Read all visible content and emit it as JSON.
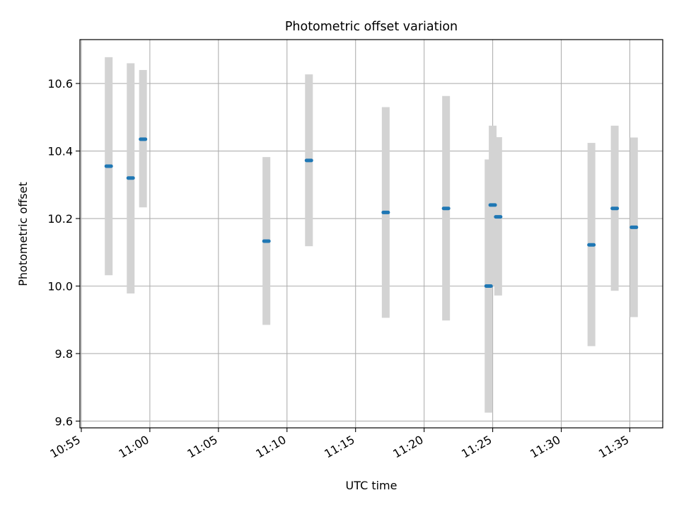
{
  "chart_data": {
    "type": "scatter",
    "title": "Photometric offset variation",
    "xlabel": "UTC time",
    "ylabel": "Photometric offset",
    "x_ticks": [
      "10:55",
      "11:00",
      "11:05",
      "11:10",
      "11:15",
      "11:20",
      "11:25",
      "11:30",
      "11:35"
    ],
    "x_tick_minutes": [
      0,
      5,
      10,
      15,
      20,
      25,
      30,
      35,
      40
    ],
    "xlim_minutes": [
      -0.1,
      42.4
    ],
    "y_ticks": [
      "9.6",
      "9.8",
      "10.0",
      "10.2",
      "10.4",
      "10.6"
    ],
    "y_tick_values": [
      9.6,
      9.8,
      10.0,
      10.2,
      10.4,
      10.6
    ],
    "ylim": [
      9.58,
      10.73
    ],
    "grid": true,
    "colors": {
      "point": "#1f77b4",
      "errorbar": "#d3d3d3",
      "grid": "#b0b0b0"
    },
    "series": [
      {
        "points": [
          {
            "time": "10:57:00",
            "y": 10.355,
            "y_low": 10.032,
            "y_high": 10.678
          },
          {
            "time": "10:58:36",
            "y": 10.32,
            "y_low": 9.978,
            "y_high": 10.66
          },
          {
            "time": "10:59:30",
            "y": 10.435,
            "y_low": 10.233,
            "y_high": 10.64
          },
          {
            "time": "11:08:30",
            "y": 10.133,
            "y_low": 9.885,
            "y_high": 10.382
          },
          {
            "time": "11:11:36",
            "y": 10.372,
            "y_low": 10.118,
            "y_high": 10.627
          },
          {
            "time": "11:17:12",
            "y": 10.218,
            "y_low": 9.906,
            "y_high": 10.53
          },
          {
            "time": "11:21:36",
            "y": 10.23,
            "y_low": 9.898,
            "y_high": 10.563
          },
          {
            "time": "11:24:42",
            "y": 10.0,
            "y_low": 9.625,
            "y_high": 10.375
          },
          {
            "time": "11:25:00",
            "y": 10.24,
            "y_low": 10.0,
            "y_high": 10.475
          },
          {
            "time": "11:25:24",
            "y": 10.205,
            "y_low": 9.972,
            "y_high": 10.441
          },
          {
            "time": "11:32:12",
            "y": 10.122,
            "y_low": 9.822,
            "y_high": 10.424
          },
          {
            "time": "11:33:54",
            "y": 10.23,
            "y_low": 9.986,
            "y_high": 10.475
          },
          {
            "time": "11:35:18",
            "y": 10.174,
            "y_low": 9.908,
            "y_high": 10.44
          }
        ]
      }
    ]
  }
}
